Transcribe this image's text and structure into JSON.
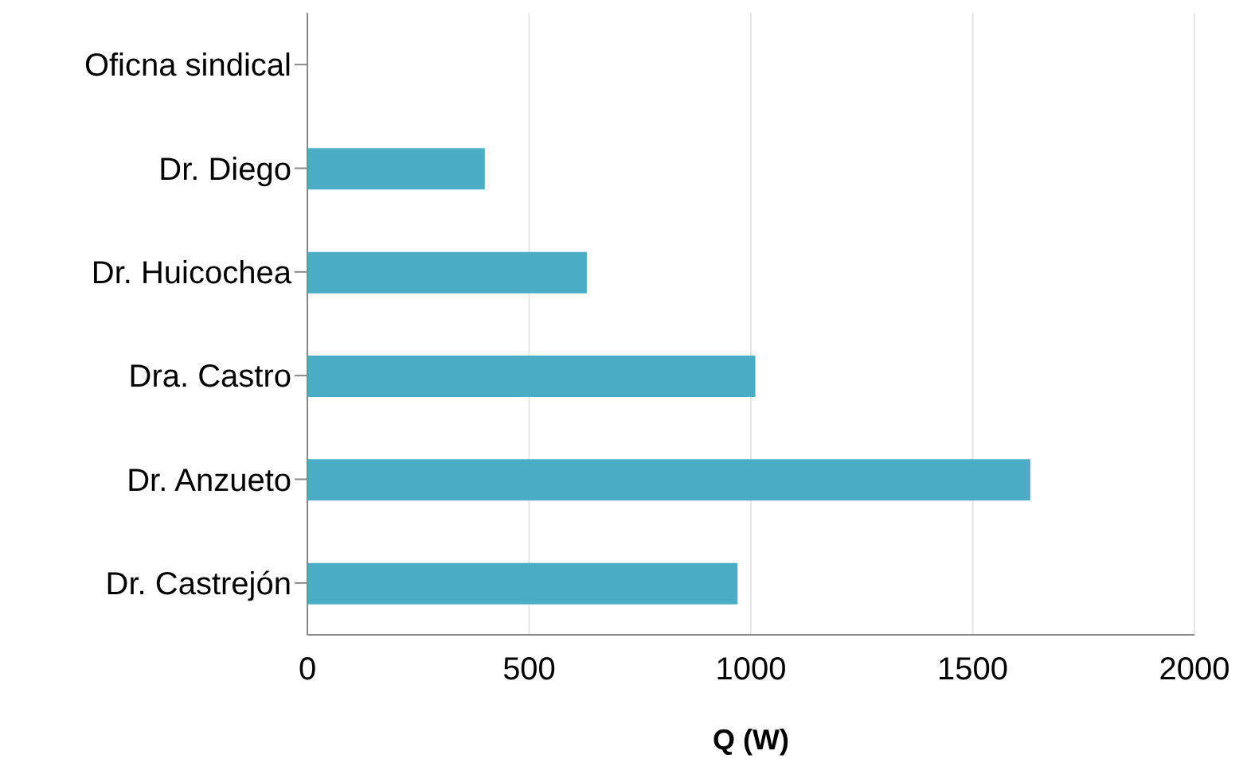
{
  "chart_data": {
    "type": "bar",
    "orientation": "horizontal",
    "xlabel": "Q (W)",
    "categories": [
      "Oficna sindical",
      "Dr. Diego",
      "Dr. Huicochea",
      "Dra. Castro",
      "Dr. Anzueto",
      "Dr. Castrejón"
    ],
    "values": [
      0,
      400,
      630,
      1010,
      1630,
      970
    ],
    "color": "#4bacc6",
    "xlim": [
      0,
      2000
    ],
    "xticks": [
      0,
      500,
      1000,
      1500,
      2000
    ],
    "grid": "x"
  }
}
